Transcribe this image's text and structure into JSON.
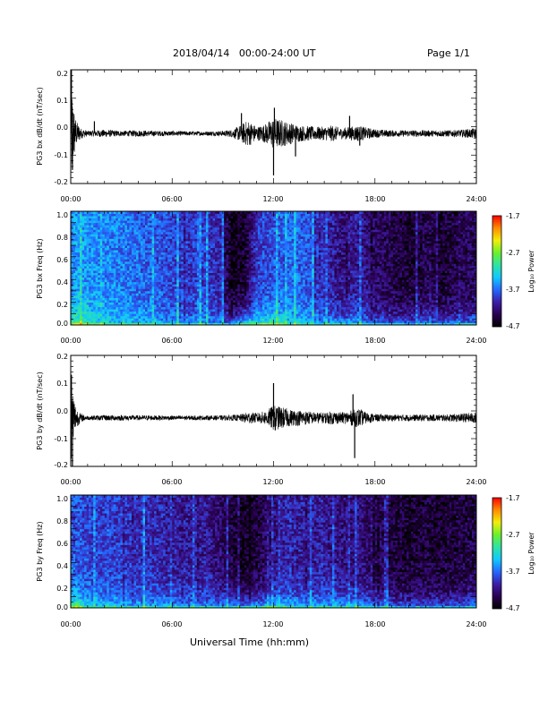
{
  "header": {
    "title": "2018/04/14   00:00-24:00 UT",
    "page_label": "Page 1/1"
  },
  "x_axis": {
    "label": "Universal Time (hh:mm)",
    "ticks": [
      "00:00",
      "06:00",
      "12:00",
      "18:00",
      "24:00"
    ],
    "range_hours": [
      0,
      24
    ]
  },
  "colors": {
    "colormap": [
      "#000000",
      "#2a0050",
      "#3c1ea6",
      "#2468ff",
      "#11c8ff",
      "#2ee4a4",
      "#6bf02c",
      "#f2ee0a",
      "#ff8c00",
      "#ff0000"
    ]
  },
  "panels": [
    {
      "id": "bx-waveform",
      "type": "line",
      "ylabel": "PG3 bx dB/dt (nT/sec)",
      "yticks": [
        "0.2",
        "0.1",
        "0.0",
        "-0.1",
        "-0.2"
      ],
      "ylim": [
        -0.2,
        0.22
      ]
    },
    {
      "id": "bx-spectrogram",
      "type": "heatmap",
      "ylabel": "PG3 bx Freq (Hz)",
      "yticks": [
        "1.0",
        "0.8",
        "0.6",
        "0.4",
        "0.2",
        "0.0"
      ],
      "ylim": [
        0,
        1.0
      ],
      "colorbar_label": "Log₁₀ Power",
      "colorbar_ticks": [
        "-1.7",
        "-2.7",
        "-3.7",
        "-4.7"
      ],
      "colorbar_range": [
        -4.7,
        -1.7
      ]
    },
    {
      "id": "by-waveform",
      "type": "line",
      "ylabel": "PG3 by dB/dt (nT/sec)",
      "yticks": [
        "0.2",
        "0.1",
        "0.0",
        "-0.1",
        "-0.2"
      ],
      "ylim": [
        -0.2,
        0.2
      ]
    },
    {
      "id": "by-spectrogram",
      "type": "heatmap",
      "ylabel": "PG3 by Freq (Hz)",
      "yticks": [
        "1.0",
        "0.8",
        "0.6",
        "0.4",
        "0.2",
        "0.0"
      ],
      "ylim": [
        0,
        1.0
      ],
      "colorbar_label": "Log₁₀ Power",
      "colorbar_ticks": [
        "-1.7",
        "-2.7",
        "-3.7",
        "-4.7"
      ],
      "colorbar_range": [
        -4.7,
        -1.7
      ]
    }
  ],
  "chart_data": [
    {
      "type": "line",
      "ylabel": "PG3 bx dB/dt (nT/sec)",
      "ylim": [
        -0.2,
        0.22
      ],
      "baseline": -0.015,
      "envelope": {
        "hours": [
          0,
          0.05,
          0.15,
          0.3,
          0.6,
          1.0,
          1.5,
          2.0,
          3.0,
          4.0,
          5.0,
          6.0,
          7.0,
          8.0,
          9.0,
          9.6,
          10.0,
          10.5,
          11.0,
          11.5,
          12.0,
          12.5,
          13.0,
          13.5,
          14.0,
          14.5,
          15.0,
          15.5,
          16.0,
          16.5,
          17.0,
          17.5,
          18.0,
          19.0,
          20.0,
          21.0,
          22.0,
          23.0,
          24.0
        ],
        "amplitude": [
          0.2,
          0.18,
          0.12,
          0.05,
          0.02,
          0.01,
          0.012,
          0.014,
          0.01,
          0.012,
          0.01,
          0.009,
          0.008,
          0.008,
          0.01,
          0.015,
          0.03,
          0.05,
          0.025,
          0.035,
          0.06,
          0.05,
          0.04,
          0.03,
          0.028,
          0.025,
          0.025,
          0.03,
          0.02,
          0.025,
          0.03,
          0.022,
          0.016,
          0.012,
          0.012,
          0.012,
          0.012,
          0.013,
          0.02
        ]
      },
      "spikes": [
        {
          "hour": 0.04,
          "value": 0.22
        },
        {
          "hour": 0.1,
          "value": -0.15
        },
        {
          "hour": 1.4,
          "value": 0.03
        },
        {
          "hour": 10.1,
          "value": 0.06
        },
        {
          "hour": 12.0,
          "value": -0.17
        },
        {
          "hour": 12.05,
          "value": 0.08
        },
        {
          "hour": 13.3,
          "value": -0.1
        },
        {
          "hour": 16.5,
          "value": 0.05
        },
        {
          "hour": 17.1,
          "value": -0.06
        }
      ]
    },
    {
      "type": "heatmap",
      "ylabel": "PG3 bx Freq (Hz)",
      "ylim": [
        0,
        1.0
      ],
      "value_range": [
        -4.7,
        -1.7
      ],
      "hours": [
        0,
        1,
        2,
        3,
        4,
        5,
        6,
        7,
        8,
        9,
        9.5,
        10,
        10.5,
        11,
        12,
        13,
        14,
        15,
        16,
        17,
        18,
        19,
        20,
        21,
        22,
        23,
        24
      ],
      "high_freq_level": [
        -3.5,
        -3.55,
        -3.6,
        -3.65,
        -3.7,
        -3.8,
        -3.85,
        -3.9,
        -3.9,
        -4.1,
        -4.6,
        -4.6,
        -4.4,
        -3.9,
        -3.8,
        -3.7,
        -3.8,
        -4.0,
        -4.2,
        -4.1,
        -4.3,
        -4.4,
        -4.5,
        -4.4,
        -4.5,
        -4.4,
        -4.3
      ],
      "low_freq_level": [
        -2.7,
        -2.9,
        -3.2,
        -3.3,
        -3.3,
        -3.4,
        -3.5,
        -3.5,
        -3.5,
        -3.6,
        -3.7,
        -3.3,
        -3.1,
        -3.0,
        -2.9,
        -3.2,
        -3.3,
        -3.4,
        -3.5,
        -3.4,
        -3.6,
        -3.7,
        -3.7,
        -3.6,
        -3.7,
        -3.6,
        -3.5
      ]
    },
    {
      "type": "line",
      "ylabel": "PG3 by dB/dt (nT/sec)",
      "ylim": [
        -0.2,
        0.2
      ],
      "baseline": -0.025,
      "envelope": {
        "hours": [
          0,
          0.05,
          0.15,
          0.3,
          0.6,
          1.0,
          2.0,
          3.0,
          4.0,
          5.0,
          6.0,
          7.0,
          8.0,
          9.0,
          10.0,
          10.5,
          11.0,
          11.5,
          12.0,
          12.5,
          13.0,
          13.5,
          14.0,
          14.5,
          15.0,
          15.5,
          16.0,
          16.5,
          17.0,
          17.5,
          18.0,
          19.0,
          20.0,
          21.0,
          22.0,
          23.0,
          24.0
        ],
        "amplitude": [
          0.16,
          0.15,
          0.1,
          0.04,
          0.015,
          0.008,
          0.01,
          0.01,
          0.009,
          0.009,
          0.008,
          0.008,
          0.008,
          0.009,
          0.012,
          0.022,
          0.018,
          0.025,
          0.045,
          0.04,
          0.03,
          0.028,
          0.025,
          0.02,
          0.02,
          0.025,
          0.02,
          0.025,
          0.035,
          0.02,
          0.014,
          0.012,
          0.012,
          0.012,
          0.012,
          0.015,
          0.02
        ]
      },
      "spikes": [
        {
          "hour": 0.04,
          "value": 0.13
        },
        {
          "hour": 0.1,
          "value": -0.2
        },
        {
          "hour": 12.0,
          "value": 0.1
        },
        {
          "hour": 12.1,
          "value": -0.07
        },
        {
          "hour": 16.7,
          "value": 0.06
        },
        {
          "hour": 16.8,
          "value": -0.17
        }
      ]
    },
    {
      "type": "heatmap",
      "ylabel": "PG3 by Freq (Hz)",
      "ylim": [
        0,
        1.0
      ],
      "value_range": [
        -4.7,
        -1.7
      ],
      "hours": [
        0,
        1,
        2,
        3,
        4,
        5,
        6,
        7,
        8,
        9,
        10,
        11,
        12,
        13,
        14,
        15,
        16,
        17,
        18,
        19,
        20,
        21,
        22,
        23,
        24
      ],
      "high_freq_level": [
        -3.8,
        -3.85,
        -3.9,
        -3.9,
        -4.0,
        -4.0,
        -4.1,
        -4.1,
        -4.1,
        -4.3,
        -4.55,
        -4.5,
        -4.2,
        -4.0,
        -4.1,
        -4.1,
        -4.2,
        -4.2,
        -4.35,
        -4.45,
        -4.5,
        -4.45,
        -4.5,
        -4.45,
        -4.4
      ],
      "low_freq_level": [
        -2.6,
        -3.2,
        -3.3,
        -3.3,
        -3.4,
        -3.4,
        -3.4,
        -3.5,
        -3.5,
        -3.5,
        -3.5,
        -3.4,
        -3.2,
        -3.3,
        -3.4,
        -3.4,
        -3.3,
        -3.4,
        -3.6,
        -3.7,
        -3.7,
        -3.6,
        -3.7,
        -3.7,
        -3.6
      ]
    }
  ]
}
